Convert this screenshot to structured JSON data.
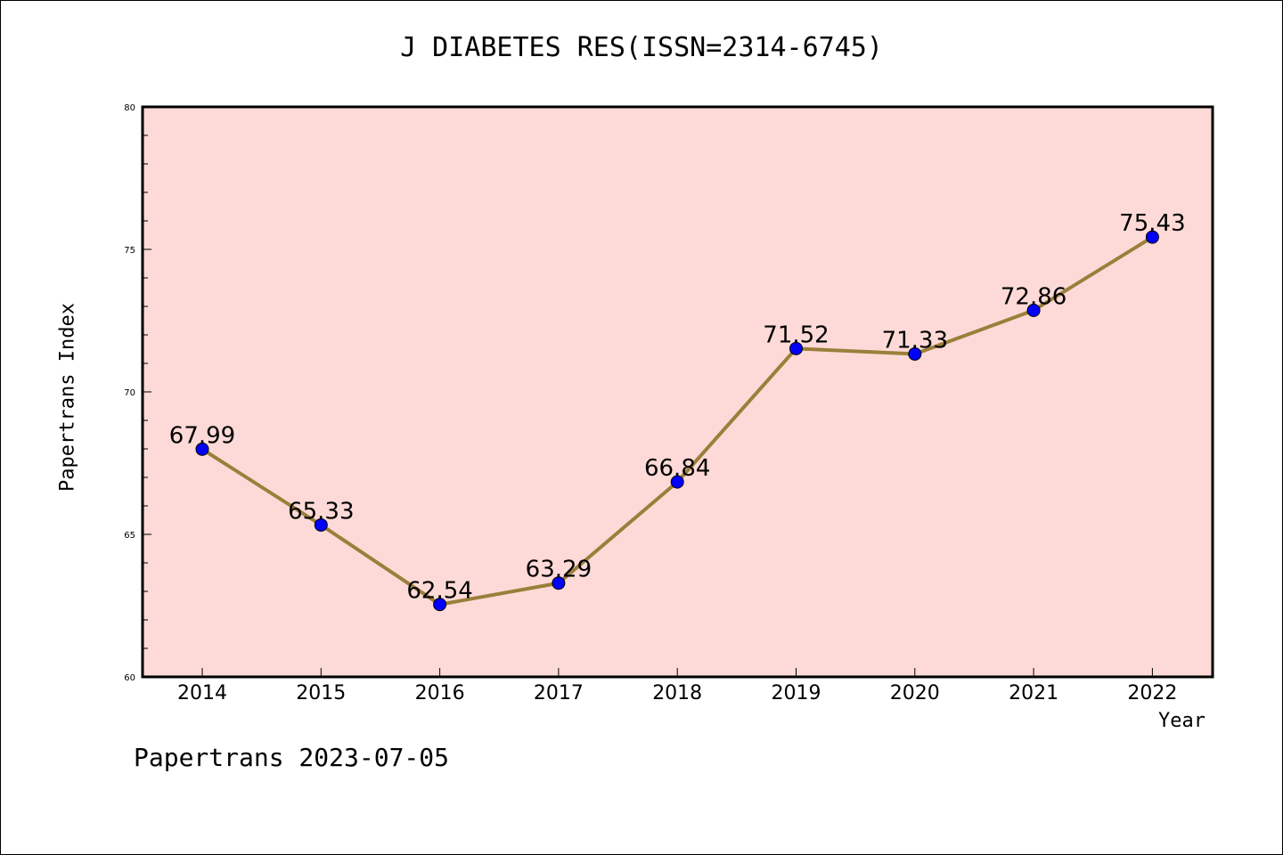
{
  "chart_data": {
    "type": "line",
    "title": "J DIABETES RES(ISSN=2314-6745)",
    "xlabel": "Year",
    "ylabel": "Papertrans Index",
    "categories": [
      "2014",
      "2015",
      "2016",
      "2017",
      "2018",
      "2019",
      "2020",
      "2021",
      "2022"
    ],
    "series": [
      {
        "values": [
          67.99,
          65.33,
          62.54,
          63.29,
          66.84,
          71.52,
          71.33,
          72.86,
          75.43
        ],
        "labels": [
          "67.99",
          "65.33",
          "62.54",
          "63.29",
          "66.84",
          "71.52",
          "71.33",
          "72.86",
          "75.43"
        ]
      }
    ],
    "ylim": [
      60,
      80
    ],
    "yticks": [
      "60",
      "65",
      "70",
      "75",
      "80"
    ],
    "grid": false,
    "legend": "none",
    "colors": {
      "plot_background": "#fddad7",
      "line": "#9b7f3a",
      "marker": "#0000ff"
    }
  },
  "footer": "Papertrans 2023-07-05"
}
